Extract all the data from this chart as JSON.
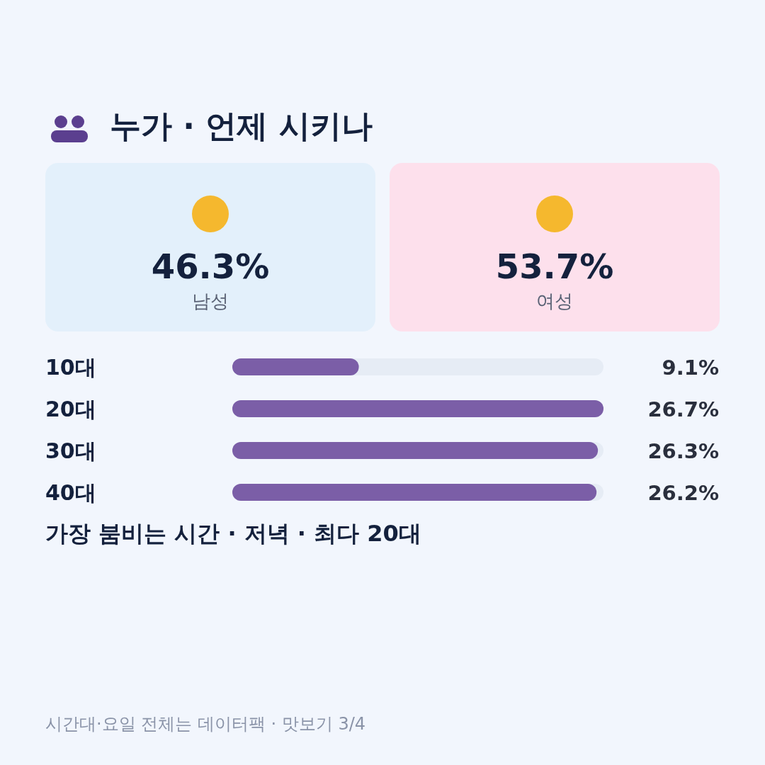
{
  "chart_data": [
    {
      "type": "other",
      "title": "누가 · 언제 시키나",
      "categories": [
        "남성",
        "여성"
      ],
      "values": [
        46.3,
        53.7
      ],
      "value_labels": [
        "46.3%",
        "53.7%"
      ],
      "colors": [
        "#e3f0fb",
        "#fde0ec"
      ]
    },
    {
      "type": "bar",
      "orientation": "horizontal",
      "categories": [
        "10대",
        "20대",
        "30대",
        "40대"
      ],
      "values": [
        9.1,
        26.7,
        26.3,
        26.2
      ],
      "value_labels": [
        "9.1%",
        "26.7%",
        "26.3%",
        "26.2%"
      ],
      "color": "#7b5ea7",
      "annotations": [
        "가장 붐비는 시간 · 저녁 · 최다 20대",
        "시간대·요일 전체는 데이터팩 · 맛보기 3/4"
      ]
    }
  ]
}
